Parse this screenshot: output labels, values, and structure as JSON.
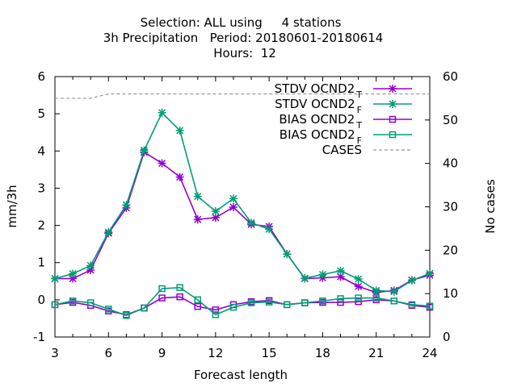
{
  "chart_data": {
    "type": "line",
    "title_lines": [
      "Selection: ALL using     4 stations",
      "3h Precipitation   Period: 20180601-20180614",
      "Hours:  12"
    ],
    "xlabel": "Forecast length",
    "ylabel": "mm/3h",
    "y2label": "No cases",
    "xlim": [
      3,
      24
    ],
    "ylim": [
      -1,
      6
    ],
    "y2lim": [
      0,
      60
    ],
    "xticks": [
      3,
      6,
      9,
      12,
      15,
      18,
      21,
      24
    ],
    "yticks": [
      -1,
      0,
      1,
      2,
      3,
      4,
      5,
      6
    ],
    "y2ticks": [
      0,
      10,
      20,
      30,
      40,
      50,
      60
    ],
    "grid": false,
    "legend_position": "top-right",
    "x": [
      3,
      4,
      5,
      6,
      7,
      8,
      9,
      10,
      11,
      12,
      13,
      14,
      15,
      16,
      17,
      18,
      19,
      20,
      21,
      22,
      23,
      24
    ],
    "series": [
      {
        "name": "STDV OCND2",
        "subscript": "T",
        "color": "#9400d3",
        "marker": "star",
        "axis": "y",
        "values": [
          0.57,
          0.57,
          0.8,
          1.79,
          2.47,
          3.97,
          3.67,
          3.3,
          2.16,
          2.21,
          2.49,
          2.03,
          1.97,
          1.23,
          0.57,
          0.59,
          0.62,
          0.36,
          0.2,
          0.25,
          0.53,
          0.66
        ]
      },
      {
        "name": "STDV OCND2",
        "subscript": "F",
        "color": "#009e73",
        "marker": "star",
        "axis": "y",
        "values": [
          0.57,
          0.7,
          0.92,
          1.82,
          2.55,
          4.02,
          5.03,
          4.55,
          2.78,
          2.38,
          2.72,
          2.07,
          1.9,
          1.23,
          0.58,
          0.68,
          0.78,
          0.56,
          0.25,
          0.22,
          0.52,
          0.71
        ]
      },
      {
        "name": "BIAS OCND2",
        "subscript": "T",
        "color": "#9400d3",
        "marker": "square",
        "axis": "y",
        "values": [
          -0.13,
          -0.07,
          -0.15,
          -0.3,
          -0.4,
          -0.22,
          0.05,
          0.08,
          -0.18,
          -0.27,
          -0.13,
          -0.05,
          -0.02,
          -0.13,
          -0.08,
          -0.07,
          -0.07,
          -0.05,
          0.0,
          -0.03,
          -0.15,
          -0.2
        ]
      },
      {
        "name": "BIAS OCND2",
        "subscript": "F",
        "color": "#009e73",
        "marker": "square",
        "axis": "y",
        "values": [
          -0.13,
          -0.03,
          -0.08,
          -0.25,
          -0.42,
          -0.22,
          0.3,
          0.33,
          0.0,
          -0.4,
          -0.2,
          -0.08,
          -0.06,
          -0.13,
          -0.08,
          -0.03,
          0.03,
          0.05,
          0.05,
          -0.03,
          -0.13,
          -0.17
        ]
      },
      {
        "name": "CASES",
        "color": "#999999",
        "marker": "none",
        "dashed": true,
        "axis": "y2",
        "values": [
          55,
          55,
          55,
          56,
          56,
          56,
          56,
          56,
          56,
          56,
          56,
          56,
          56,
          56,
          56,
          56,
          56,
          56,
          56,
          56,
          56,
          56
        ]
      }
    ]
  }
}
